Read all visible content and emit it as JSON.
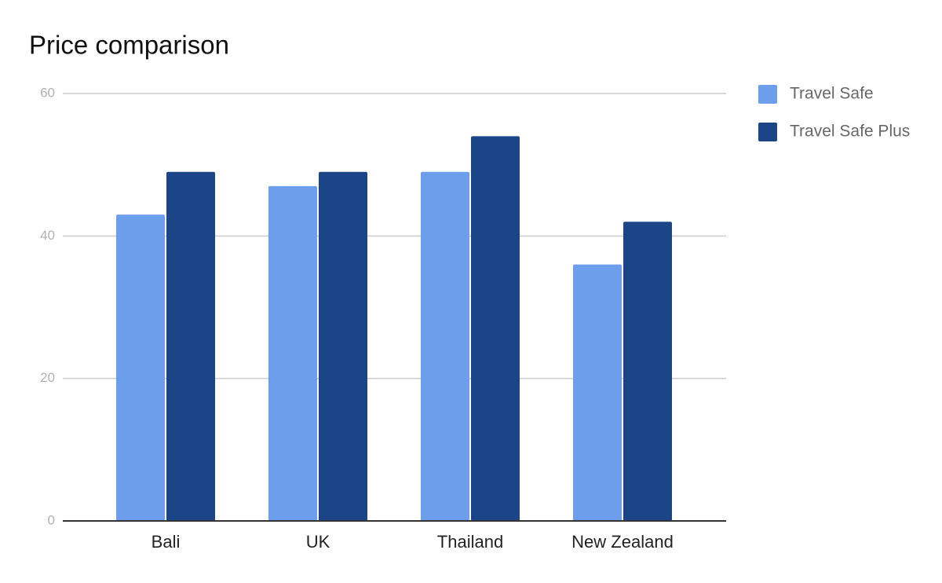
{
  "chart_data": {
    "type": "bar",
    "title": "Price comparison",
    "categories": [
      "Bali",
      "UK",
      "Thailand",
      "New Zealand"
    ],
    "series": [
      {
        "name": "Travel Safe",
        "color": "#6d9eeb",
        "values": [
          43,
          47,
          49,
          36
        ]
      },
      {
        "name": "Travel Safe Plus",
        "color": "#1c4587",
        "values": [
          49,
          49,
          54,
          42
        ]
      }
    ],
    "ylim": [
      0,
      60
    ],
    "yticks": [
      0,
      20,
      40,
      60
    ],
    "grid": true,
    "legend": "right"
  }
}
